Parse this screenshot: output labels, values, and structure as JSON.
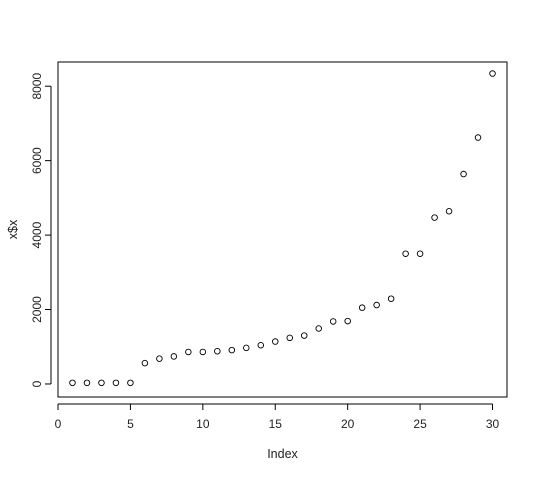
{
  "chart_data": {
    "type": "scatter",
    "title": "",
    "xlabel": "Index",
    "ylabel": "x$x",
    "xlim": [
      0,
      31
    ],
    "ylim": [
      -350,
      8650
    ],
    "xticks": [
      0,
      5,
      10,
      15,
      20,
      25,
      30
    ],
    "yticks": [
      0,
      2000,
      4000,
      6000,
      8000
    ],
    "grid": false,
    "legend": "none",
    "point_style": "open-circle",
    "point_color": "#000000",
    "series": [
      {
        "x": [
          1,
          2,
          3,
          4,
          5,
          6,
          7,
          8,
          9,
          10,
          11,
          12,
          13,
          14,
          15,
          16,
          17,
          18,
          19,
          20,
          21,
          22,
          23,
          24,
          25,
          26,
          27,
          28,
          29,
          30
        ],
        "y": [
          30,
          30,
          30,
          30,
          30,
          560,
          680,
          740,
          860,
          860,
          880,
          910,
          970,
          1040,
          1140,
          1240,
          1300,
          1490,
          1680,
          1690,
          2050,
          2120,
          2290,
          3500,
          3500,
          4470,
          4640,
          5640,
          6620,
          8340
        ]
      }
    ]
  }
}
